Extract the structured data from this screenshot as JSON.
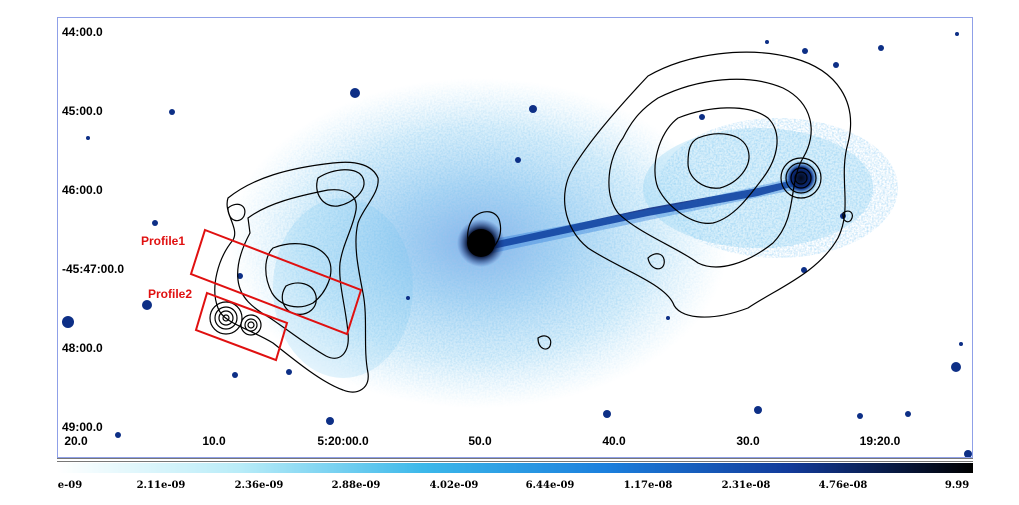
{
  "coordinates": {
    "declination_labels": [
      "44:00.0",
      "45:00.0",
      "46:00.0",
      "-45:47:00.0",
      "48:00.0",
      "49:00.0"
    ],
    "right_ascension_labels": [
      "20.0",
      "10.0",
      "5:20:00.0",
      "50.0",
      "40.0",
      "30.0",
      "19:20.0"
    ]
  },
  "regions": {
    "profile1_label": "Profile1",
    "profile2_label": "Profile2",
    "region_color": "#e01010"
  },
  "colorbar": {
    "tick_labels": [
      "e-09",
      "2.11e-09",
      "2.36e-09",
      "2.88e-09",
      "4.02e-09",
      "6.44e-09",
      "1.17e-08",
      "2.31e-08",
      "4.76e-08",
      "9.99"
    ],
    "colors": [
      "#ffffff",
      "#b8ecf8",
      "#3cb8ea",
      "#1b7fdd",
      "#123a9a",
      "#000000"
    ]
  },
  "image": {
    "emission_color": "#2b90dc",
    "core_color": "#000000",
    "contour_color": "#000000"
  }
}
